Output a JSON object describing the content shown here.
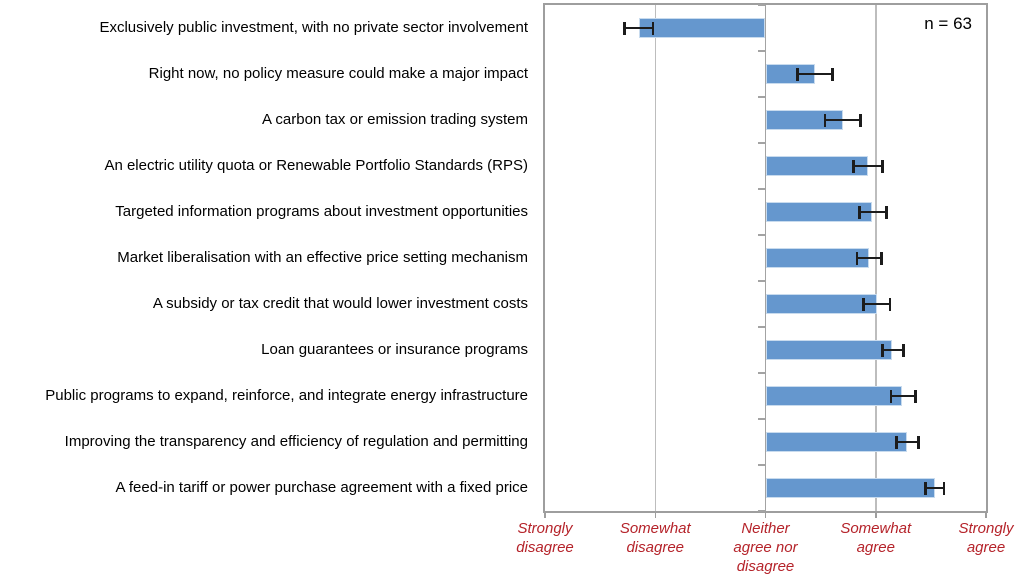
{
  "chart_data": {
    "type": "bar",
    "orientation": "horizontal",
    "n_label": "n = 63",
    "baseline": 3,
    "axis": {
      "min": 1,
      "max": 5,
      "tick_values": [
        1,
        2,
        3,
        4,
        5
      ],
      "tick_labels": [
        [
          "Strongly",
          "disagree"
        ],
        [
          "Somewhat",
          "disagree"
        ],
        [
          "Neither",
          "agree nor",
          "disagree"
        ],
        [
          "Somewhat",
          "agree"
        ],
        [
          "Strongly",
          "agree"
        ]
      ],
      "grid": true,
      "legend": "none"
    },
    "categories": [
      "Exclusively public investment, with no private sector involvement",
      "Right now, no policy measure could make a major impact",
      "A carbon tax or emission trading system",
      "An electric utility quota or Renewable Portfolio Standards (RPS)",
      "Targeted information programs about investment opportunities",
      "Market liberalisation with an effective price setting mechanism",
      "A subsidy or tax credit that would lower investment costs",
      "Loan guarantees or insurance programs",
      "Public programs to expand, reinforce, and integrate energy infrastructure",
      "Improving the transparency and efficiency of regulation and permitting",
      "A feed-in tariff or power purchase agreement with a fixed price"
    ],
    "values": [
      1.85,
      3.45,
      3.7,
      3.93,
      3.97,
      3.94,
      4.01,
      4.15,
      4.24,
      4.28,
      4.54
    ],
    "error_low": [
      1.72,
      3.29,
      3.54,
      3.8,
      3.85,
      3.83,
      3.89,
      4.06,
      4.14,
      4.19,
      4.45
    ],
    "error_high": [
      1.98,
      3.61,
      3.86,
      4.06,
      4.1,
      4.05,
      4.13,
      4.25,
      4.36,
      4.39,
      4.62
    ],
    "colors": {
      "bar": "#6597ce",
      "bar_edge": "#c8dbee",
      "error": "#1c1c1c",
      "grid": "#bdbdbd",
      "center_axis": "#a3a3a3",
      "plot_border": "#9e9e9e",
      "x_tick_label": "#b5232a",
      "text": "#000000"
    }
  }
}
